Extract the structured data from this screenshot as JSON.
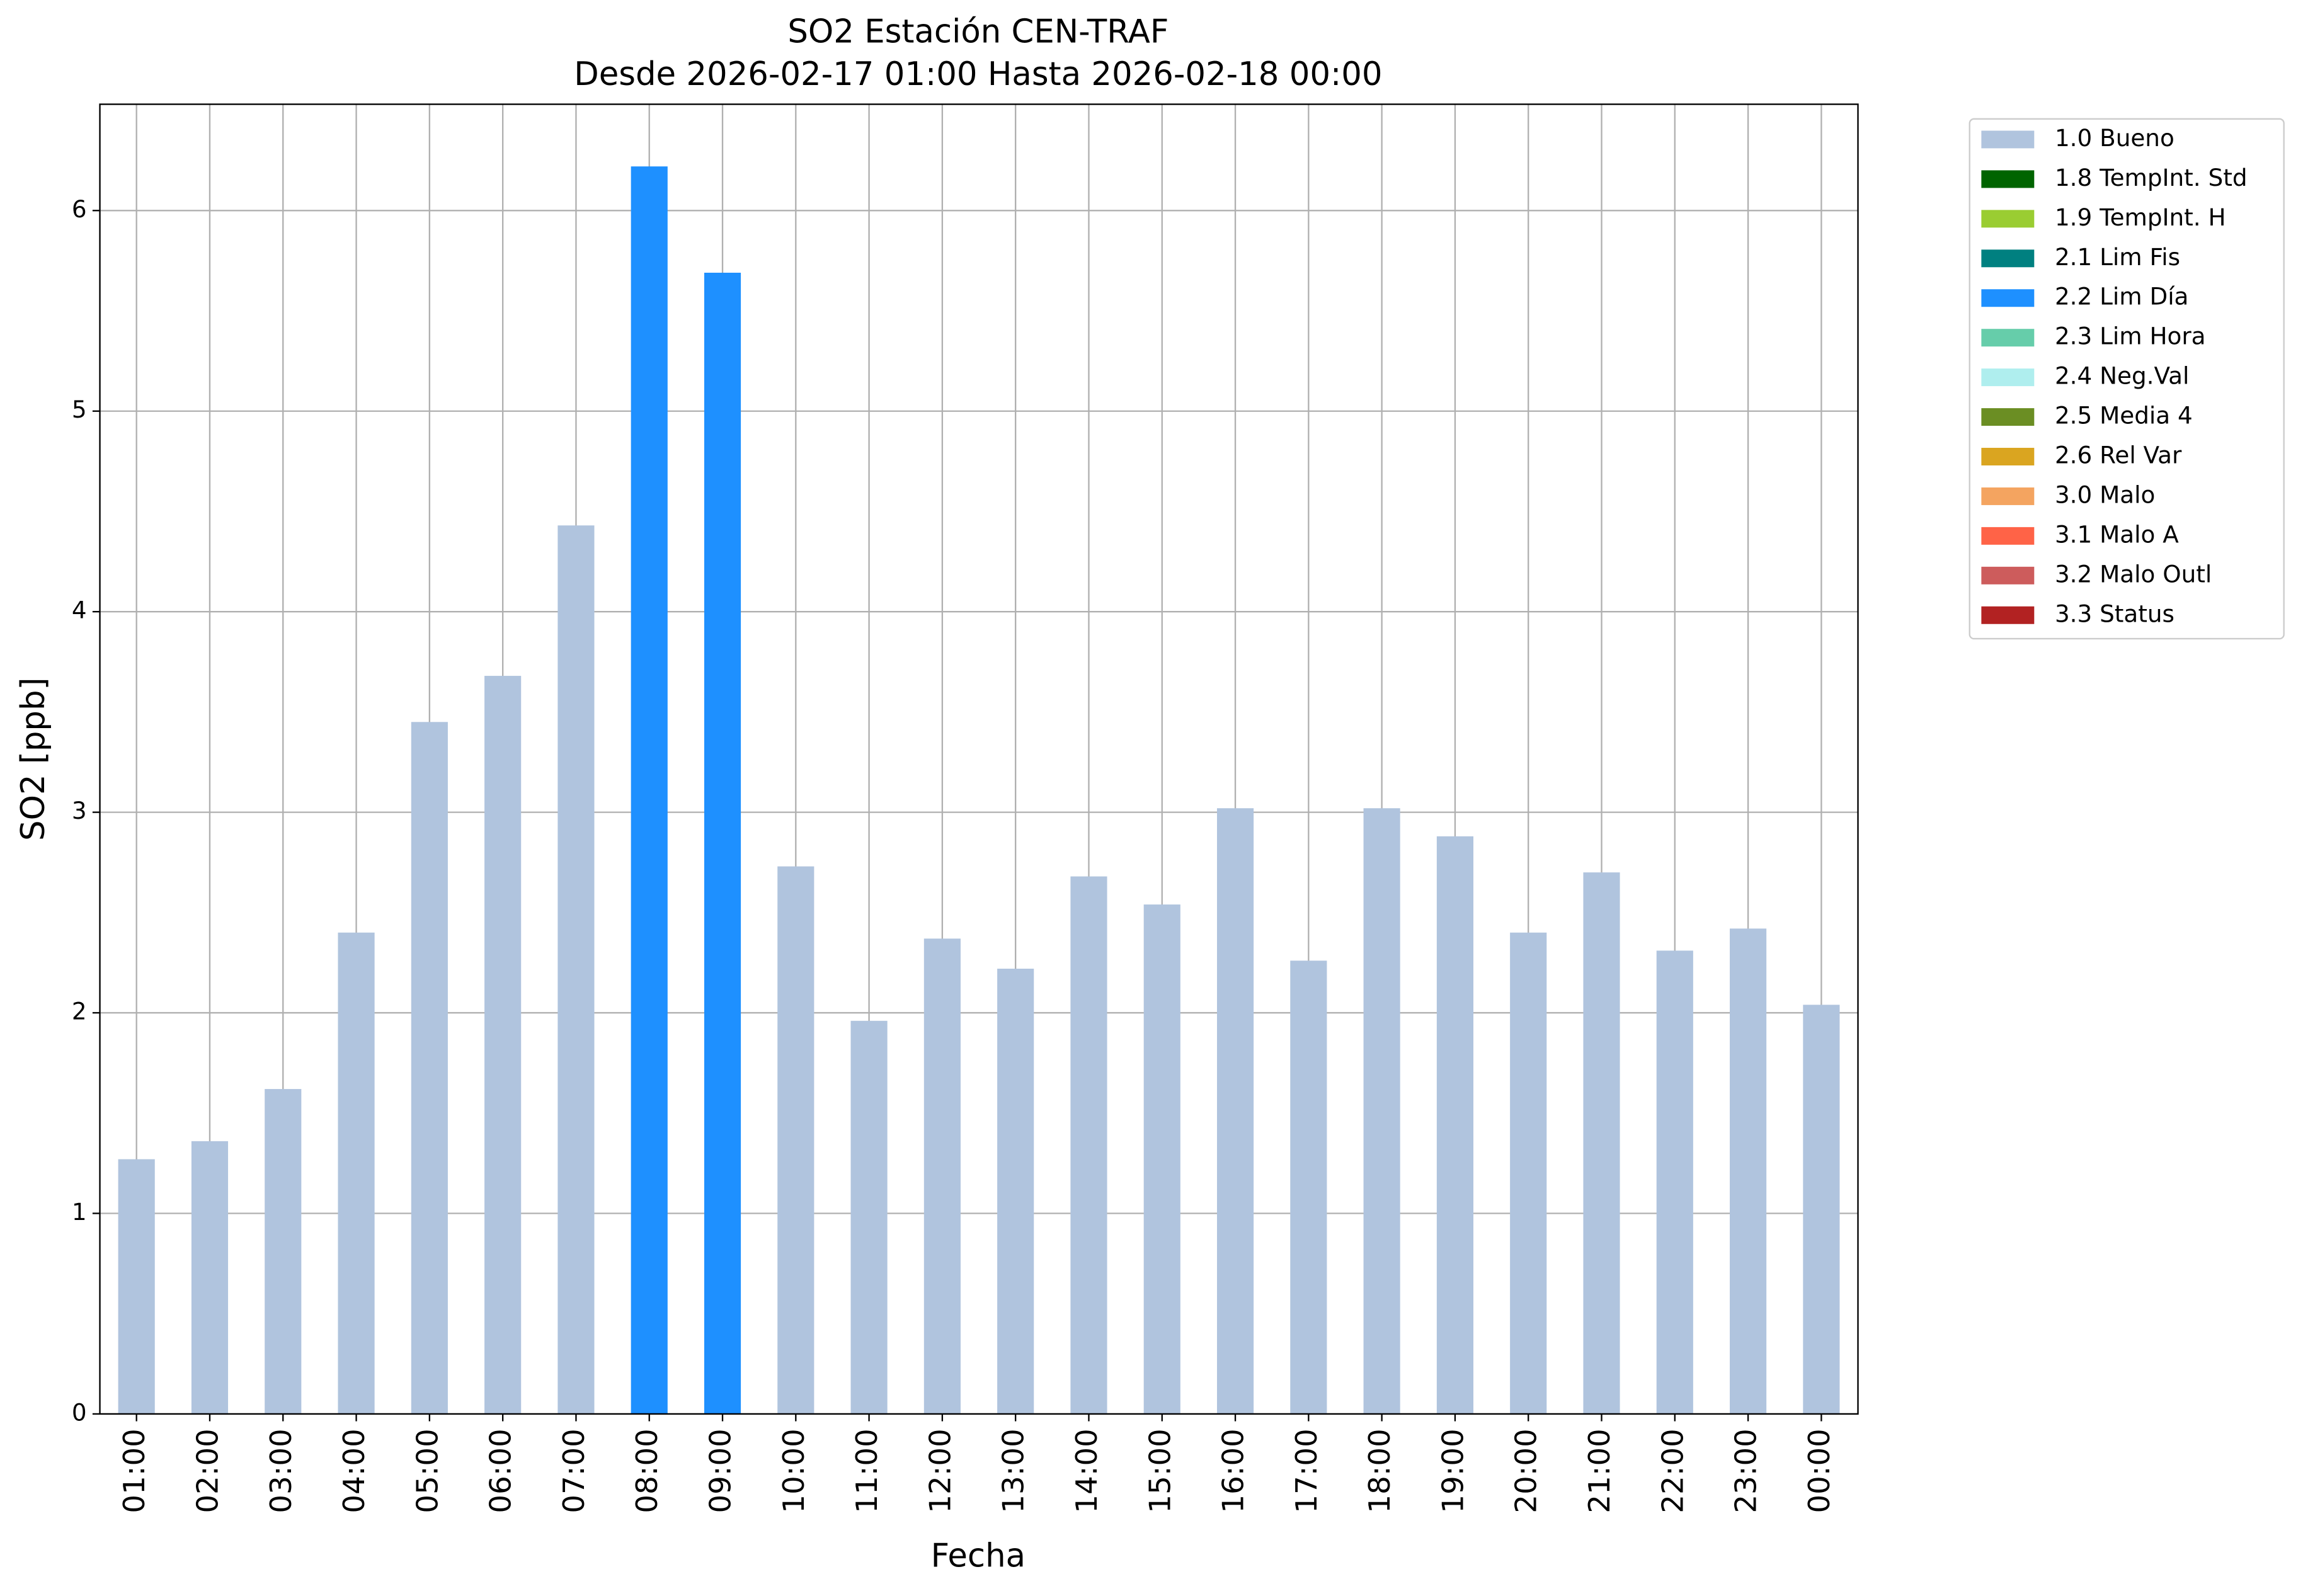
{
  "chart_data": {
    "type": "stacked_bar",
    "title": "SO2 Estación CEN-TRAF",
    "subtitle": "Desde 2026-02-17 01:00 Hasta 2026-02-18 00:00",
    "x_label": "Fecha",
    "y_label": "SO2 [ppb]",
    "categories": [
      "01:00",
      "02:00",
      "03:00",
      "04:00",
      "05:00",
      "06:00",
      "07:00",
      "08:00",
      "09:00",
      "10:00",
      "11:00",
      "12:00",
      "13:00",
      "14:00",
      "15:00",
      "16:00",
      "17:00",
      "18:00",
      "19:00",
      "20:00",
      "21:00",
      "22:00",
      "23:00",
      "00:00"
    ],
    "series": [
      {
        "name": "1.0 Bueno",
        "color": "#b0c4de",
        "values": [
          1.27,
          1.36,
          1.62,
          2.4,
          3.45,
          3.68,
          4.43,
          null,
          null,
          2.73,
          1.96,
          2.37,
          2.22,
          2.68,
          2.54,
          3.02,
          2.26,
          3.02,
          2.88,
          2.4,
          2.7,
          2.31,
          2.42,
          2.04
        ]
      },
      {
        "name": "1.8 TempInt. Std",
        "color": "#006400",
        "values": [
          null,
          null,
          null,
          null,
          null,
          null,
          null,
          null,
          null,
          null,
          null,
          null,
          null,
          null,
          null,
          null,
          null,
          null,
          null,
          null,
          null,
          null,
          null,
          null
        ]
      },
      {
        "name": "1.9 TempInt. H",
        "color": "#9acd32",
        "values": [
          null,
          null,
          null,
          null,
          null,
          null,
          null,
          null,
          null,
          null,
          null,
          null,
          null,
          null,
          null,
          null,
          null,
          null,
          null,
          null,
          null,
          null,
          null,
          null
        ]
      },
      {
        "name": "2.1 Lim Fis",
        "color": "#008080",
        "values": [
          null,
          null,
          null,
          null,
          null,
          null,
          null,
          null,
          null,
          null,
          null,
          null,
          null,
          null,
          null,
          null,
          null,
          null,
          null,
          null,
          null,
          null,
          null,
          null
        ]
      },
      {
        "name": "2.2 Lim Día",
        "color": "#1e90ff",
        "values": [
          null,
          null,
          null,
          null,
          null,
          null,
          null,
          6.22,
          5.69,
          null,
          null,
          null,
          null,
          null,
          null,
          null,
          null,
          null,
          null,
          null,
          null,
          null,
          null,
          null
        ]
      },
      {
        "name": "2.3 Lim Hora",
        "color": "#66cdaa",
        "values": [
          null,
          null,
          null,
          null,
          null,
          null,
          null,
          null,
          null,
          null,
          null,
          null,
          null,
          null,
          null,
          null,
          null,
          null,
          null,
          null,
          null,
          null,
          null,
          null
        ]
      },
      {
        "name": "2.4 Neg.Val",
        "color": "#afeeee",
        "values": [
          null,
          null,
          null,
          null,
          null,
          null,
          null,
          null,
          null,
          null,
          null,
          null,
          null,
          null,
          null,
          null,
          null,
          null,
          null,
          null,
          null,
          null,
          null,
          null
        ]
      },
      {
        "name": "2.5 Media 4",
        "color": "#6b8e23",
        "values": [
          null,
          null,
          null,
          null,
          null,
          null,
          null,
          null,
          null,
          null,
          null,
          null,
          null,
          null,
          null,
          null,
          null,
          null,
          null,
          null,
          null,
          null,
          null,
          null
        ]
      },
      {
        "name": "2.6 Rel Var",
        "color": "#daa520",
        "values": [
          null,
          null,
          null,
          null,
          null,
          null,
          null,
          null,
          null,
          null,
          null,
          null,
          null,
          null,
          null,
          null,
          null,
          null,
          null,
          null,
          null,
          null,
          null,
          null
        ]
      },
      {
        "name": "3.0 Malo",
        "color": "#f4a460",
        "values": [
          null,
          null,
          null,
          null,
          null,
          null,
          null,
          null,
          null,
          null,
          null,
          null,
          null,
          null,
          null,
          null,
          null,
          null,
          null,
          null,
          null,
          null,
          null,
          null
        ]
      },
      {
        "name": "3.1 Malo A",
        "color": "#ff6347",
        "values": [
          null,
          null,
          null,
          null,
          null,
          null,
          null,
          null,
          null,
          null,
          null,
          null,
          null,
          null,
          null,
          null,
          null,
          null,
          null,
          null,
          null,
          null,
          null,
          null
        ]
      },
      {
        "name": "3.2 Malo Outl",
        "color": "#cd5c5c",
        "values": [
          null,
          null,
          null,
          null,
          null,
          null,
          null,
          null,
          null,
          null,
          null,
          null,
          null,
          null,
          null,
          null,
          null,
          null,
          null,
          null,
          null,
          null,
          null,
          null
        ]
      },
      {
        "name": "3.3 Status",
        "color": "#b22222",
        "values": [
          null,
          null,
          null,
          null,
          null,
          null,
          null,
          null,
          null,
          null,
          null,
          null,
          null,
          null,
          null,
          null,
          null,
          null,
          null,
          null,
          null,
          null,
          null,
          null
        ]
      }
    ],
    "ylim": [
      0,
      6.53
    ],
    "yticks": [
      0,
      1,
      2,
      3,
      4,
      5,
      6
    ],
    "grid": true,
    "legend": "outside-right"
  }
}
